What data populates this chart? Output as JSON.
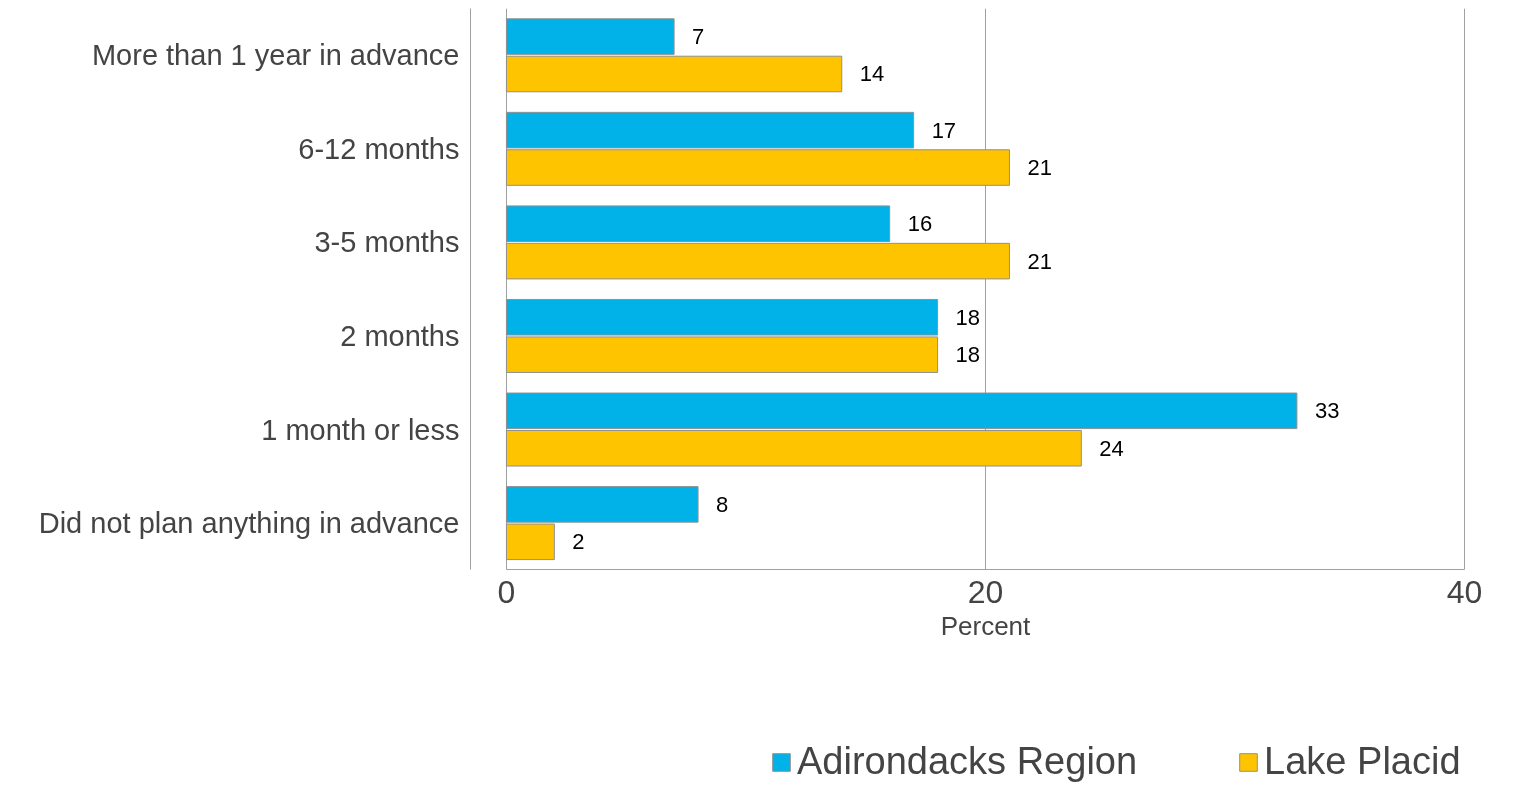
{
  "chart_data": {
    "type": "bar",
    "orientation": "horizontal",
    "xlabel": "Percent",
    "categories": [
      "More than 1 year in advance",
      "6-12 months",
      "3-5 months",
      "2 months",
      "1 month or less",
      "Did not plan anything in advance"
    ],
    "series": [
      {
        "name": "Adirondacks Region",
        "color": "#00b2e8",
        "values": [
          7,
          17,
          16,
          18,
          33,
          8
        ]
      },
      {
        "name": "Lake Placid",
        "color": "#ffc400",
        "values": [
          14,
          21,
          21,
          18,
          24,
          2
        ]
      }
    ],
    "xlim": [
      0,
      40
    ],
    "xticks": [
      0,
      20,
      40
    ],
    "grid": "x",
    "legend": "bottom",
    "data_labels": true
  }
}
